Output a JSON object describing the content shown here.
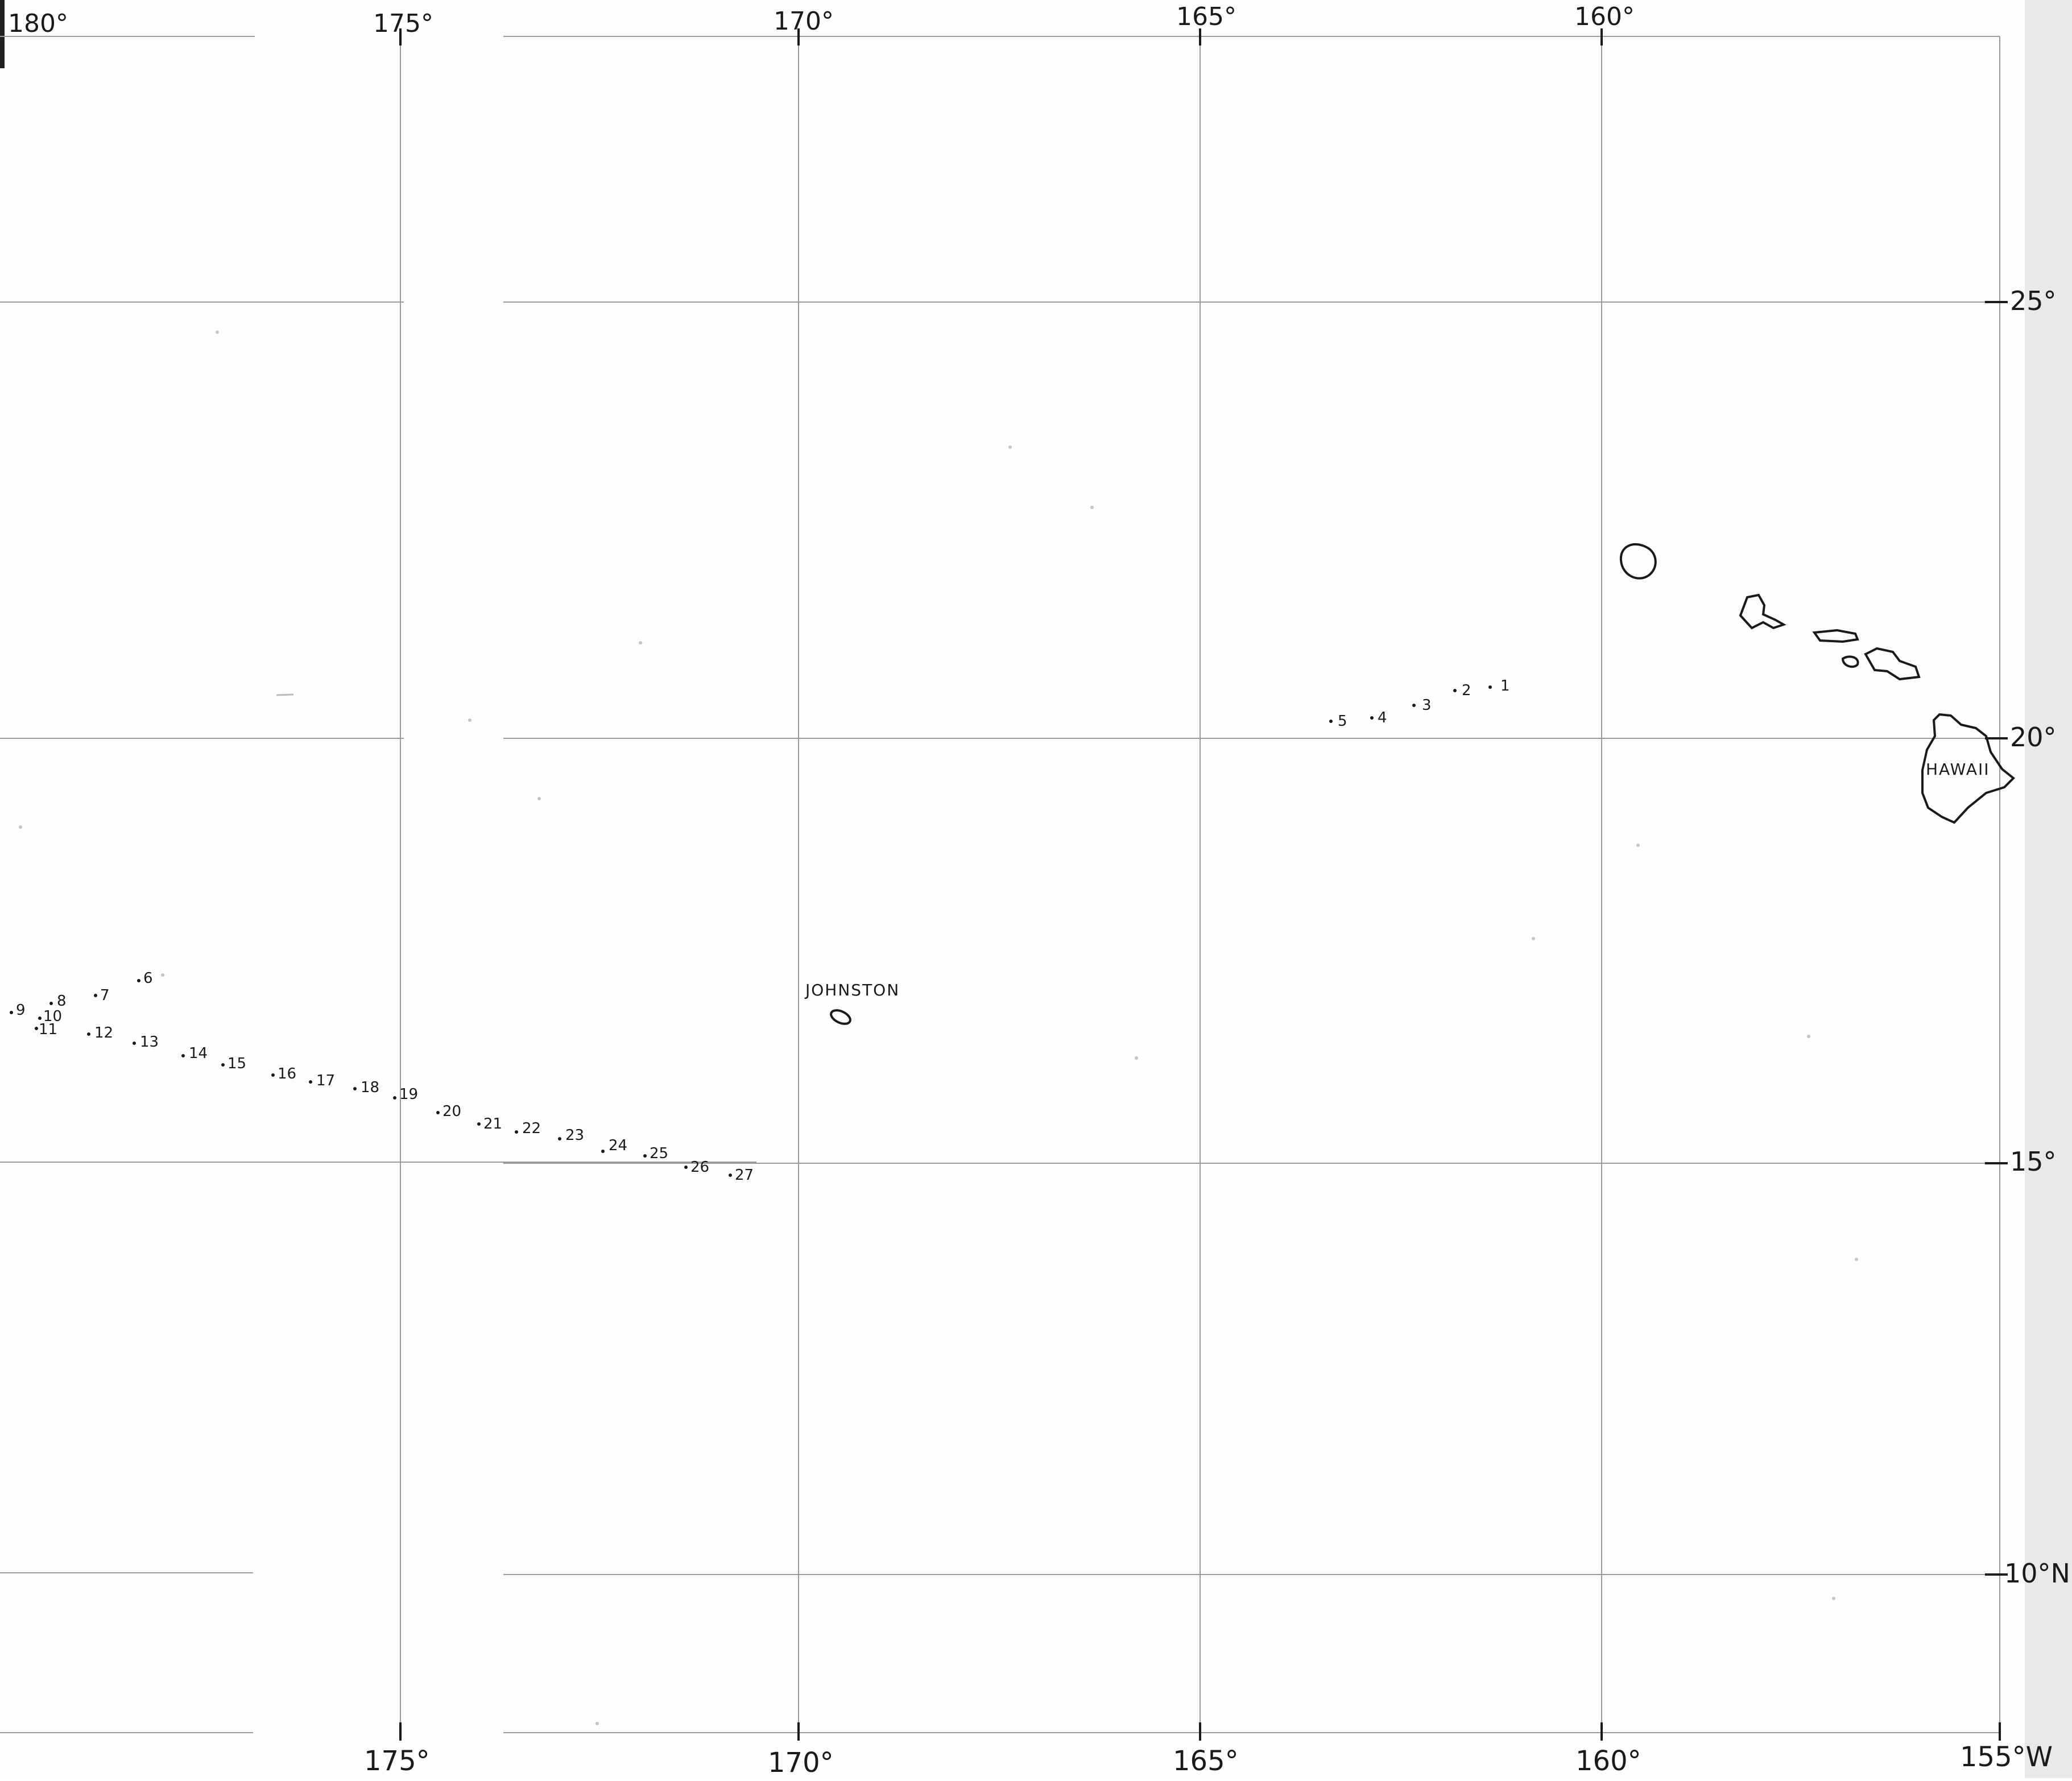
{
  "map": {
    "top_longitude_labels": [
      "180°",
      "175°",
      "170°",
      "165°",
      "160°"
    ],
    "bottom_longitude_labels": [
      "175°",
      "170°",
      "165°",
      "160°",
      "155°W"
    ],
    "latitude_labels": [
      "25°",
      "20°",
      "15°",
      "10°N"
    ],
    "place_labels": {
      "johnston": "JOHNSTON",
      "hawaii": "HAWAII"
    },
    "track_points": [
      "1",
      "2",
      "3",
      "4",
      "5",
      "6",
      "7",
      "8",
      "9",
      "10",
      "11",
      "12",
      "13",
      "14",
      "15",
      "16",
      "17",
      "18",
      "19",
      "20",
      "21",
      "22",
      "23",
      "24",
      "25",
      "26",
      "27"
    ],
    "line_color": "#9a9a9a",
    "ink_color": "#1a1a1a"
  }
}
